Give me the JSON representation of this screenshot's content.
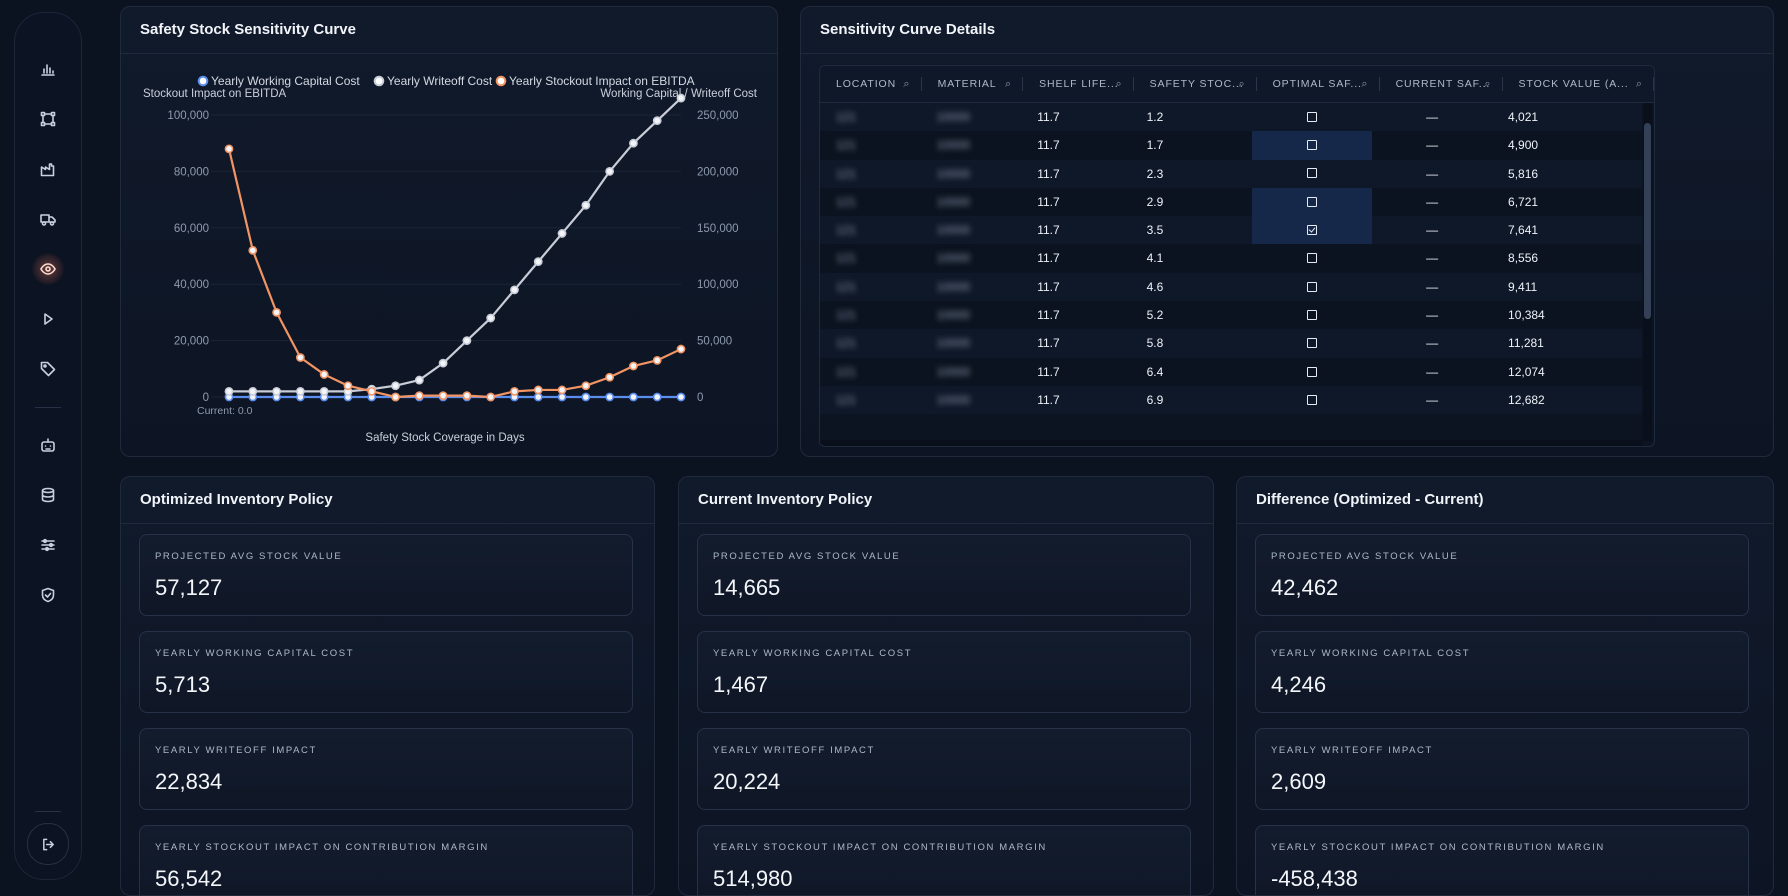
{
  "sidebar": {
    "items": [
      {
        "icon": "bar-chart-icon"
      },
      {
        "icon": "network-icon"
      },
      {
        "icon": "factory-icon"
      },
      {
        "icon": "truck-icon"
      },
      {
        "icon": "eye-icon",
        "active": true
      },
      {
        "icon": "play-icon"
      },
      {
        "icon": "tag-icon"
      },
      {
        "icon": "robot-icon"
      },
      {
        "icon": "database-icon"
      },
      {
        "icon": "sliders-icon"
      },
      {
        "icon": "shield-icon"
      }
    ],
    "logout_icon": "logout-icon"
  },
  "sensitivity_chart": {
    "title": "Safety Stock Sensitivity Curve",
    "legend": [
      "Yearly Working Capital Cost",
      "Yearly Writeoff Cost",
      "Yearly Stockout Impact on EBITDA"
    ],
    "left_axis_title": "Stockout Impact on EBITDA",
    "right_axis_title": "Working Capital / Writeoff Cost",
    "x_axis_title": "Safety Stock Coverage in Days",
    "current_marker": "Current: 0.0",
    "left_ticks": [
      "100,000",
      "80,000",
      "60,000",
      "40,000",
      "20,000",
      "0"
    ],
    "right_ticks": [
      "250,000",
      "200,000",
      "150,000",
      "100,000",
      "50,000",
      "0"
    ]
  },
  "chart_data": {
    "type": "line",
    "title": "Safety Stock Sensitivity Curve",
    "xlabel": "Safety Stock Coverage in Days",
    "ylabel_left": "Stockout Impact on EBITDA",
    "ylabel_right": "Working Capital / Writeoff Cost",
    "ylim_left": [
      0,
      100000
    ],
    "ylim_right": [
      0,
      250000
    ],
    "grid": true,
    "legend_position": "top",
    "points": 20,
    "series": [
      {
        "name": "Yearly Working Capital Cost",
        "axis": "right",
        "color": "#5b8def",
        "values": [
          0,
          0,
          0,
          0,
          0,
          0,
          0,
          0,
          0,
          0,
          0,
          0,
          0,
          0,
          0,
          0,
          0,
          0,
          0,
          0
        ]
      },
      {
        "name": "Yearly Writeoff Cost",
        "axis": "right",
        "color": "#c9cdd8",
        "values": [
          5000,
          5000,
          5000,
          5000,
          5000,
          5000,
          7000,
          10000,
          15000,
          30000,
          50000,
          70000,
          95000,
          120000,
          145000,
          170000,
          200000,
          225000,
          245000,
          265000
        ]
      },
      {
        "name": "Yearly Stockout Impact on EBITDA",
        "axis": "left",
        "color": "#f29463",
        "values": [
          88000,
          52000,
          30000,
          14000,
          8000,
          4000,
          2000,
          0,
          500,
          500,
          500,
          0,
          2000,
          2500,
          2500,
          4000,
          7000,
          11000,
          13000,
          17000
        ]
      }
    ]
  },
  "details": {
    "title": "Sensitivity Curve Details",
    "columns": [
      "LOCATION",
      "MATERIAL",
      "SHELF LIFE...",
      "SAFETY STOC...",
      "OPTIMAL SAF...",
      "CURRENT SAF...",
      "STOCK VALUE (A..."
    ],
    "rows": [
      {
        "loc": "121",
        "mat": "10000",
        "shelf": "11.7",
        "safety": "1.2",
        "opt": false,
        "hl": false,
        "cur": "—",
        "stock": "4,021"
      },
      {
        "loc": "121",
        "mat": "10000",
        "shelf": "11.7",
        "safety": "1.7",
        "opt": false,
        "hl": true,
        "cur": "—",
        "stock": "4,900"
      },
      {
        "loc": "121",
        "mat": "10000",
        "shelf": "11.7",
        "safety": "2.3",
        "opt": false,
        "hl": false,
        "cur": "—",
        "stock": "5,816"
      },
      {
        "loc": "121",
        "mat": "10000",
        "shelf": "11.7",
        "safety": "2.9",
        "opt": false,
        "hl": true,
        "cur": "—",
        "stock": "6,721"
      },
      {
        "loc": "121",
        "mat": "10000",
        "shelf": "11.7",
        "safety": "3.5",
        "opt": true,
        "hl": true,
        "cur": "—",
        "stock": "7,641"
      },
      {
        "loc": "121",
        "mat": "10000",
        "shelf": "11.7",
        "safety": "4.1",
        "opt": false,
        "hl": false,
        "cur": "—",
        "stock": "8,556"
      },
      {
        "loc": "121",
        "mat": "10000",
        "shelf": "11.7",
        "safety": "4.6",
        "opt": false,
        "hl": false,
        "cur": "—",
        "stock": "9,411"
      },
      {
        "loc": "121",
        "mat": "10000",
        "shelf": "11.7",
        "safety": "5.2",
        "opt": false,
        "hl": false,
        "cur": "—",
        "stock": "10,384"
      },
      {
        "loc": "121",
        "mat": "10000",
        "shelf": "11.7",
        "safety": "5.8",
        "opt": false,
        "hl": false,
        "cur": "—",
        "stock": "11,281"
      },
      {
        "loc": "121",
        "mat": "10000",
        "shelf": "11.7",
        "safety": "6.4",
        "opt": false,
        "hl": false,
        "cur": "—",
        "stock": "12,074"
      },
      {
        "loc": "121",
        "mat": "10000",
        "shelf": "11.7",
        "safety": "6.9",
        "opt": false,
        "hl": false,
        "cur": "—",
        "stock": "12,682"
      }
    ]
  },
  "policies": [
    {
      "title": "Optimized Inventory Policy",
      "metrics": [
        {
          "label": "Projected Avg Stock Value",
          "value": "57,127"
        },
        {
          "label": "Yearly Working Capital Cost",
          "value": "5,713"
        },
        {
          "label": "Yearly Writeoff Impact",
          "value": "22,834"
        },
        {
          "label": "Yearly Stockout Impact on Contribution Margin",
          "value": "56,542"
        }
      ]
    },
    {
      "title": "Current Inventory Policy",
      "metrics": [
        {
          "label": "Projected Avg Stock Value",
          "value": "14,665"
        },
        {
          "label": "Yearly Working Capital Cost",
          "value": "1,467"
        },
        {
          "label": "Yearly Writeoff Impact",
          "value": "20,224"
        },
        {
          "label": "Yearly Stockout Impact on Contribution Margin",
          "value": "514,980"
        }
      ]
    },
    {
      "title": "Difference (Optimized - Current)",
      "metrics": [
        {
          "label": "Projected Avg Stock Value",
          "value": "42,462"
        },
        {
          "label": "Yearly Working Capital Cost",
          "value": "4,246"
        },
        {
          "label": "Yearly Writeoff Impact",
          "value": "2,609"
        },
        {
          "label": "Yearly Stockout Impact on Contribution Margin",
          "value": "-458,438"
        }
      ]
    }
  ]
}
